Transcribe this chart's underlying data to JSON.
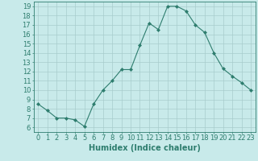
{
  "x": [
    0,
    1,
    2,
    3,
    4,
    5,
    6,
    7,
    8,
    9,
    10,
    11,
    12,
    13,
    14,
    15,
    16,
    17,
    18,
    19,
    20,
    21,
    22,
    23
  ],
  "y": [
    8.5,
    7.8,
    7.0,
    7.0,
    6.8,
    6.1,
    8.5,
    10.0,
    11.0,
    12.2,
    12.2,
    14.8,
    17.2,
    16.5,
    19.0,
    19.0,
    18.5,
    17.0,
    16.2,
    14.0,
    12.3,
    11.5,
    10.8,
    10.0
  ],
  "line_color": "#2e7d6e",
  "marker": "D",
  "marker_size": 2,
  "bg_color": "#c8eaea",
  "grid_color": "#a8cccc",
  "xlabel": "Humidex (Indice chaleur)",
  "xlim": [
    -0.5,
    23.5
  ],
  "ylim": [
    5.5,
    19.5
  ],
  "yticks": [
    6,
    7,
    8,
    9,
    10,
    11,
    12,
    13,
    14,
    15,
    16,
    17,
    18,
    19
  ],
  "xticks": [
    0,
    1,
    2,
    3,
    4,
    5,
    6,
    7,
    8,
    9,
    10,
    11,
    12,
    13,
    14,
    15,
    16,
    17,
    18,
    19,
    20,
    21,
    22,
    23
  ],
  "tick_color": "#2e7d6e",
  "axis_color": "#2e7d6e",
  "label_color": "#2e7d6e",
  "font_size_label": 7,
  "font_size_tick": 6
}
